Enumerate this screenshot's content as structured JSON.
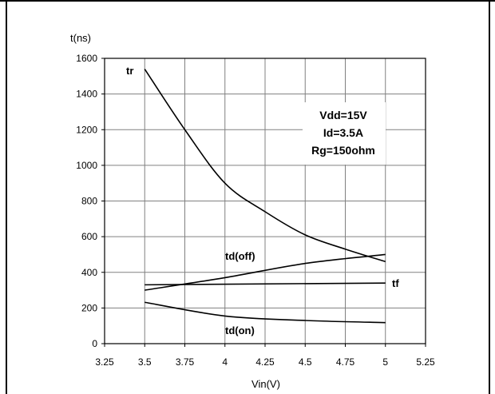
{
  "chart_data": {
    "type": "line",
    "title": "",
    "xlabel": "Vin(V)",
    "ylabel": "t(ns)",
    "xlim": [
      3.25,
      5.25
    ],
    "ylim": [
      0,
      1600
    ],
    "x_ticks": [
      "3.25",
      "3.5",
      "3.75",
      "4",
      "4.25",
      "4.5",
      "4.75",
      "5",
      "5.25"
    ],
    "y_ticks": [
      "0",
      "200",
      "400",
      "600",
      "800",
      "1000",
      "1200",
      "1400",
      "1600"
    ],
    "grid": true,
    "series": [
      {
        "name": "tr",
        "x": [
          3.5,
          3.75,
          4.0,
          4.25,
          4.5,
          4.75,
          5.0
        ],
        "y": [
          1540,
          1200,
          900,
          740,
          610,
          530,
          460
        ]
      },
      {
        "name": "td(off)",
        "x": [
          3.5,
          4.0,
          4.5,
          5.0
        ],
        "y": [
          300,
          370,
          450,
          500
        ]
      },
      {
        "name": "tf",
        "x": [
          3.5,
          5.0
        ],
        "y": [
          330,
          340
        ]
      },
      {
        "name": "td(on)",
        "x": [
          3.5,
          4.0,
          4.5,
          5.0
        ],
        "y": [
          232,
          155,
          130,
          118
        ]
      }
    ],
    "annotation_lines": [
      "Vdd=15V",
      "Id=3.5A",
      "Rg=150ohm"
    ]
  }
}
